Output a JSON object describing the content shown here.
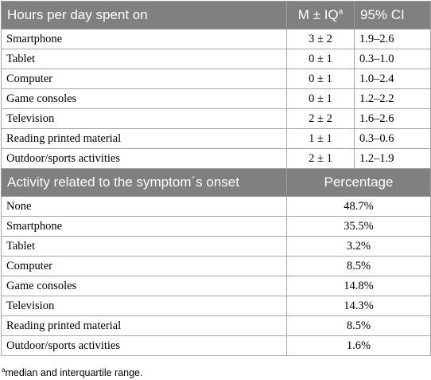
{
  "table1": {
    "headers": {
      "activity": "Hours per day spent on",
      "median_prefix": "M ± IQ",
      "median_sup": "a",
      "ci": "95% CI"
    },
    "rows": [
      {
        "activity": "Smartphone",
        "median": "3 ± 2",
        "ci": "1.9–2.6"
      },
      {
        "activity": "Tablet",
        "median": "0 ± 1",
        "ci": "0.3–1.0"
      },
      {
        "activity": "Computer",
        "median": "0 ± 1",
        "ci": "1.0–2.4"
      },
      {
        "activity": "Game consoles",
        "median": "0 ± 1",
        "ci": "1.2–2.2"
      },
      {
        "activity": "Television",
        "median": "2 ± 2",
        "ci": "1.6–2.6"
      },
      {
        "activity": "Reading printed material",
        "median": "1 ± 1",
        "ci": "0.3–0.6"
      },
      {
        "activity": "Outdoor/sports activities",
        "median": "2 ± 1",
        "ci": "1.2–1.9"
      }
    ]
  },
  "table2": {
    "headers": {
      "activity": "Activity related to the symptom´s onset",
      "percentage": "Percentage"
    },
    "rows": [
      {
        "activity": "None",
        "percentage": "48.7%"
      },
      {
        "activity": "Smartphone",
        "percentage": "35.5%"
      },
      {
        "activity": "Tablet",
        "percentage": "3.2%"
      },
      {
        "activity": "Computer",
        "percentage": "8.5%"
      },
      {
        "activity": "Game consoles",
        "percentage": "14.8%"
      },
      {
        "activity": "Television",
        "percentage": "14.3%"
      },
      {
        "activity": "Reading printed material",
        "percentage": "8.5%"
      },
      {
        "activity": "Outdoor/sports activities",
        "percentage": "1.6%"
      }
    ]
  },
  "footnote": {
    "marker": "a",
    "text": "median and interquartile range."
  }
}
